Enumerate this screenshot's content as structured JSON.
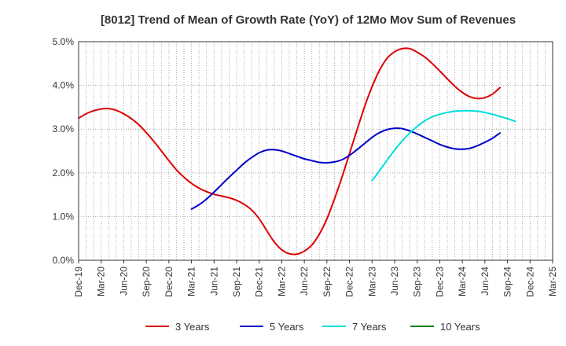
{
  "chart_data": {
    "type": "line",
    "title": "[8012]  Trend of Mean of Growth Rate (YoY) of 12Mo Mov Sum of Revenues",
    "xlabel": "",
    "ylabel": "",
    "ylim": [
      0,
      5
    ],
    "y_ticks": [
      "0.0%",
      "1.0%",
      "2.0%",
      "3.0%",
      "4.0%",
      "5.0%"
    ],
    "x_ticks": [
      "Dec-19",
      "Mar-20",
      "Jun-20",
      "Sep-20",
      "Dec-20",
      "Mar-21",
      "Jun-21",
      "Sep-21",
      "Dec-21",
      "Mar-22",
      "Jun-22",
      "Sep-22",
      "Dec-22",
      "Mar-23",
      "Jun-23",
      "Sep-23",
      "Dec-23",
      "Mar-24",
      "Jun-24",
      "Sep-24",
      "Dec-24",
      "Mar-25"
    ],
    "grid": true,
    "legend_position": "bottom",
    "series": [
      {
        "name": "3 Years",
        "color": "#dd0000",
        "start_month": 0,
        "values": [
          3.25,
          3.35,
          3.42,
          3.46,
          3.47,
          3.43,
          3.35,
          3.24,
          3.1,
          2.92,
          2.72,
          2.5,
          2.28,
          2.07,
          1.9,
          1.76,
          1.65,
          1.57,
          1.51,
          1.47,
          1.43,
          1.37,
          1.28,
          1.15,
          0.95,
          0.68,
          0.42,
          0.24,
          0.15,
          0.14,
          0.21,
          0.35,
          0.6,
          0.95,
          1.4,
          1.9,
          2.44,
          2.98,
          3.51,
          3.97,
          4.35,
          4.62,
          4.77,
          4.84,
          4.84,
          4.76,
          4.65,
          4.5,
          4.33,
          4.15,
          3.98,
          3.84,
          3.74,
          3.7,
          3.72,
          3.8,
          3.95
        ]
      },
      {
        "name": "5 Years",
        "color": "#0000cc",
        "start_month": 15,
        "values": [
          1.17,
          1.27,
          1.4,
          1.56,
          1.73,
          1.9,
          2.06,
          2.22,
          2.35,
          2.46,
          2.52,
          2.53,
          2.5,
          2.44,
          2.38,
          2.32,
          2.28,
          2.24,
          2.23,
          2.25,
          2.3,
          2.4,
          2.53,
          2.67,
          2.81,
          2.92,
          2.99,
          3.02,
          3.01,
          2.96,
          2.89,
          2.81,
          2.73,
          2.65,
          2.59,
          2.55,
          2.54,
          2.56,
          2.62,
          2.7,
          2.79,
          2.91
        ]
      },
      {
        "name": "7 Years",
        "color": "#00dddd",
        "start_month": 39,
        "values": [
          1.82,
          2.05,
          2.29,
          2.52,
          2.73,
          2.91,
          3.06,
          3.19,
          3.28,
          3.34,
          3.38,
          3.41,
          3.42,
          3.42,
          3.41,
          3.38,
          3.34,
          3.29,
          3.24,
          3.18
        ]
      },
      {
        "name": "10 Years",
        "color": "#008000",
        "start_month": 0,
        "values": []
      }
    ]
  }
}
